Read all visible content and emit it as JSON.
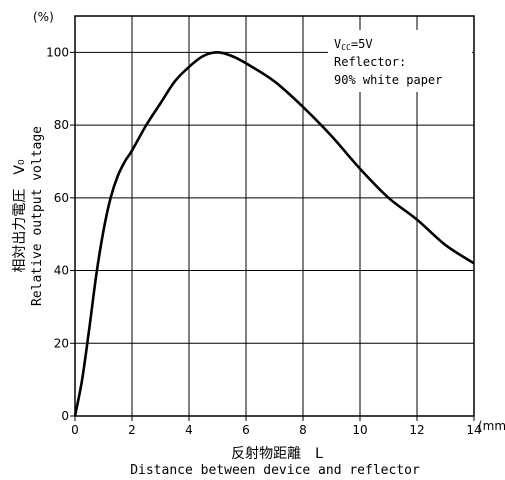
{
  "chart_data": {
    "type": "line",
    "x_unit": "(mm)",
    "y_unit": "(%)",
    "xlim": [
      0,
      14
    ],
    "ylim": [
      0,
      110
    ],
    "x_ticks": [
      "0",
      "2",
      "4",
      "6",
      "8",
      "10",
      "12",
      "14"
    ],
    "y_ticks": [
      "0",
      "20",
      "40",
      "60",
      "80",
      "100"
    ],
    "grid": true,
    "xlabel_jp": "反射物距離　L",
    "xlabel": "Distance between device and reflector",
    "ylabel_jp": "相対出力電圧　V₀",
    "ylabel": "Relative output voltage",
    "annotation": {
      "line1_main": "V",
      "line1_sub": "CC",
      "line1_rest": "=5V",
      "line2": "Reflector:",
      "line3": "90% white paper"
    },
    "series": [
      {
        "x": [
          0,
          0.25,
          0.5,
          0.75,
          1,
          1.25,
          1.5,
          1.75,
          2,
          2.5,
          3,
          3.5,
          4,
          4.5,
          5,
          5.5,
          6,
          7,
          8,
          9,
          10,
          11,
          12,
          13,
          14
        ],
        "y": [
          0,
          10,
          24,
          39,
          51,
          60,
          66,
          70,
          73,
          80,
          86,
          92,
          96,
          99,
          100,
          99,
          97,
          92,
          85,
          77,
          68,
          60,
          54,
          47,
          42
        ]
      }
    ]
  }
}
